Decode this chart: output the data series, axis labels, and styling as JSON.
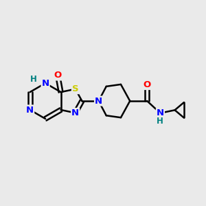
{
  "bg_color": "#eaeaea",
  "bond_color": "#000000",
  "bond_width": 1.8,
  "atom_colors": {
    "N": "#0000ff",
    "S": "#cccc00",
    "O": "#ff0000",
    "H_label": "#008080",
    "C": "#000000"
  },
  "font_size": 9.5,
  "fig_width": 3.0,
  "fig_height": 3.0,
  "dpi": 100
}
